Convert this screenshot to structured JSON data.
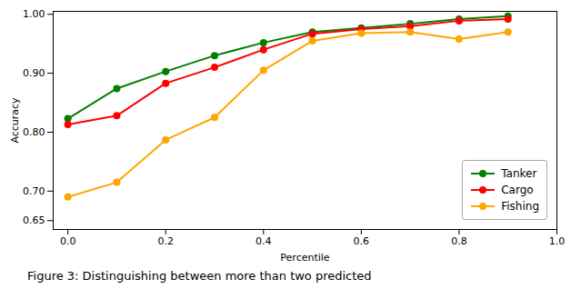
{
  "chart_data": {
    "type": "line",
    "caption": "Figure 3:  Distinguishing between more than two predicted",
    "xlabel": "Percentile",
    "ylabel": "Accuracy",
    "x": [
      0.0,
      0.1,
      0.2,
      0.3,
      0.4,
      0.5,
      0.6,
      0.7,
      0.8,
      0.9
    ],
    "series": [
      {
        "name": "Tanker",
        "color": "#008000",
        "values": [
          0.823,
          0.874,
          0.903,
          0.93,
          0.952,
          0.97,
          0.977,
          0.984,
          0.992,
          0.997
        ]
      },
      {
        "name": "Cargo",
        "color": "#ff0000",
        "values": [
          0.813,
          0.828,
          0.883,
          0.91,
          0.94,
          0.967,
          0.975,
          0.98,
          0.989,
          0.992
        ]
      },
      {
        "name": "Fishing",
        "color": "#ffa500",
        "values": [
          0.69,
          0.715,
          0.787,
          0.825,
          0.905,
          0.955,
          0.968,
          0.97,
          0.958,
          0.97
        ]
      }
    ],
    "xlim": [
      -0.03,
      1.0
    ],
    "ylim": [
      0.635,
      1.005
    ],
    "xticks": [
      {
        "value": 0.0,
        "label": "0.0"
      },
      0.2,
      0.4,
      0.6,
      0.8,
      {
        "value": 1.0,
        "label": "1.0"
      }
    ],
    "yticks": [
      0.65,
      {
        "value": 0.7,
        "label": "0.70"
      },
      {
        "value": 0.8,
        "label": "0.80"
      },
      {
        "value": 0.9,
        "label": "0.90"
      },
      {
        "value": 1.0,
        "label": "1.00"
      }
    ],
    "marker": "o",
    "grid": false,
    "legend": "lower right"
  }
}
